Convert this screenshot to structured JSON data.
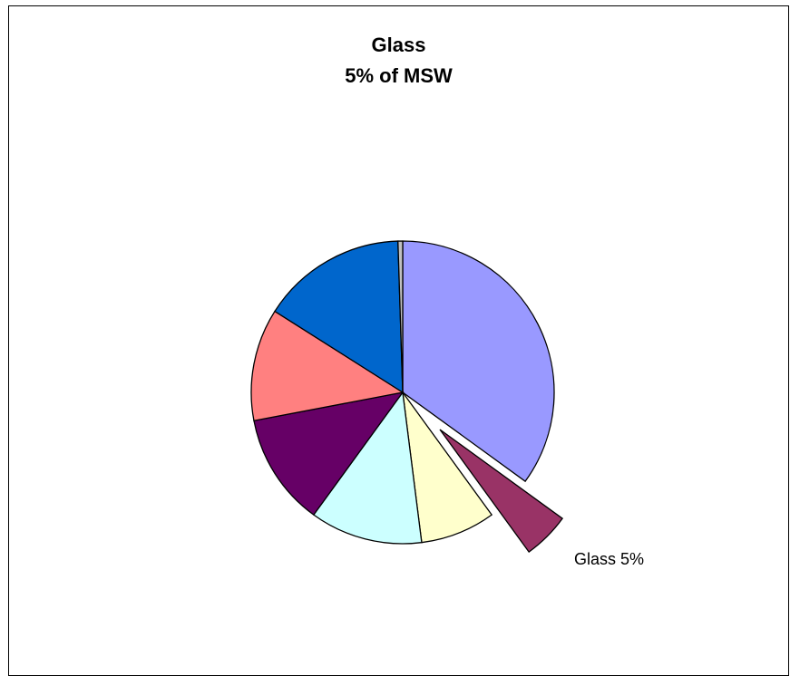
{
  "chart_data": {
    "type": "pie",
    "title": "Glass",
    "subtitle": "5% of MSW",
    "start_angle_deg": 0,
    "direction": "clockwise",
    "slices": [
      {
        "value": 35.0,
        "color": "#9999ff",
        "label": ""
      },
      {
        "value": 5.0,
        "color": "#993366",
        "label": "Glass 5%",
        "exploded": true
      },
      {
        "value": 8.0,
        "color": "#ffffcc",
        "label": ""
      },
      {
        "value": 12.0,
        "color": "#ccffff",
        "label": ""
      },
      {
        "value": 12.0,
        "color": "#660066",
        "label": ""
      },
      {
        "value": 12.0,
        "color": "#ff8080",
        "label": ""
      },
      {
        "value": 15.5,
        "color": "#0066cc",
        "label": ""
      },
      {
        "value": 0.5,
        "color": "#c0c0c0",
        "label": ""
      }
    ],
    "legend": "none"
  }
}
